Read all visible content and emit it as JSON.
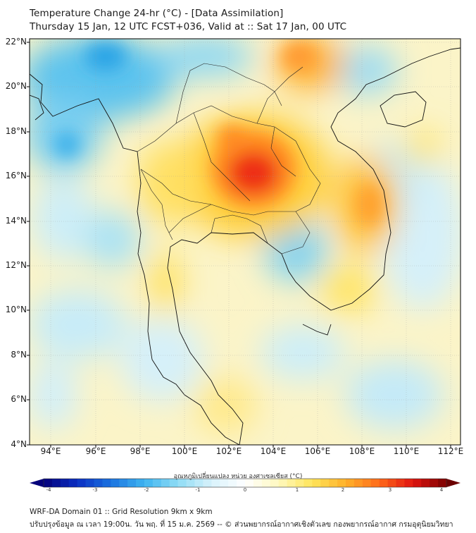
{
  "header": {
    "title": "Temperature Change 24-hr (°C) - [Data Assimilation]",
    "subtitle": "Thursday 15 Jan, 12 UTC FCST+036, Valid at :: Sat 17 Jan, 00 UTC"
  },
  "map": {
    "lat_labels": [
      "22°N",
      "20°N",
      "18°N",
      "16°N",
      "14°N",
      "12°N",
      "10°N",
      "8°N",
      "6°N",
      "4°N"
    ],
    "lon_labels": [
      "94°E",
      "96°E",
      "98°E",
      "100°E",
      "102°E",
      "104°E",
      "106°E",
      "108°E",
      "110°E",
      "112°E"
    ],
    "lat_range": [
      4,
      22.3
    ],
    "lon_range": [
      93.0,
      112.6
    ]
  },
  "colorbar": {
    "title": "อุณหภูมิเปลี่ยนแปลง หน่วย องศาเซลเซียส (°C)",
    "ticks": [
      "-4",
      "-3",
      "-2",
      "-1",
      "0",
      "1",
      "2",
      "3",
      "4"
    ],
    "range": [
      -4,
      4
    ],
    "colors": [
      "#04007a",
      "#0a2ec2",
      "#1a73e0",
      "#3eb4f0",
      "#8fdcf5",
      "#d8f2fb",
      "#ffffff",
      "#fff8bf",
      "#ffe45a",
      "#ffb12a",
      "#ff6a1a",
      "#e01410",
      "#7a0000"
    ]
  },
  "footer": {
    "line1": "WRF-DA Domain 01 :: Grid Resolution 9km x 9km",
    "line2": "ปรับปรุงข้อมูล ณ เวลา 19:00น. วัน พฤ. ที่ 15 ม.ค. 2569 -- © ส่วนพยากรณ์อากาศเชิงตัวเลข กองพยากรณ์อากาศ กรมอุตุนิยมวิทยา"
  }
}
